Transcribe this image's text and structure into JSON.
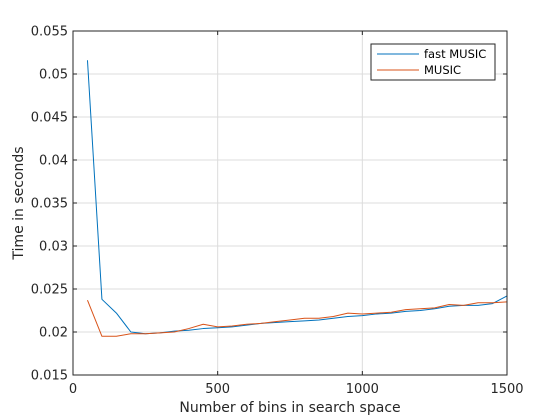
{
  "chart_data": {
    "type": "line",
    "title": "",
    "xlabel": "Number of bins in search space",
    "ylabel": "Time in seconds",
    "xlim": [
      0,
      1500
    ],
    "ylim": [
      0.015,
      0.055
    ],
    "xticks": [
      0,
      500,
      1000,
      1500
    ],
    "xtick_labels": [
      "0",
      "500",
      "1000",
      "1500"
    ],
    "yticks": [
      0.015,
      0.02,
      0.025,
      0.03,
      0.035,
      0.04,
      0.045,
      0.05,
      0.055
    ],
    "ytick_labels": [
      "0.015",
      "0.02",
      "0.025",
      "0.03",
      "0.035",
      "0.04",
      "0.045",
      "0.05",
      "0.055"
    ],
    "grid": true,
    "legend_position": "top-right",
    "x": [
      50,
      100,
      150,
      200,
      250,
      300,
      350,
      400,
      450,
      500,
      550,
      600,
      650,
      700,
      750,
      800,
      850,
      900,
      950,
      1000,
      1050,
      1100,
      1150,
      1200,
      1250,
      1300,
      1350,
      1400,
      1450,
      1500
    ],
    "series": [
      {
        "name": "fast MUSIC",
        "color": "#0072BD",
        "values": [
          0.0516,
          0.0238,
          0.0222,
          0.02,
          0.0198,
          0.0199,
          0.0201,
          0.0202,
          0.0204,
          0.0205,
          0.0206,
          0.0208,
          0.021,
          0.0211,
          0.0212,
          0.0213,
          0.0214,
          0.0216,
          0.0218,
          0.0219,
          0.0221,
          0.0222,
          0.0224,
          0.0225,
          0.0227,
          0.023,
          0.0231,
          0.0231,
          0.0233,
          0.0242
        ]
      },
      {
        "name": "MUSIC",
        "color": "#D95319",
        "values": [
          0.0237,
          0.0195,
          0.0195,
          0.0198,
          0.0198,
          0.0199,
          0.02,
          0.0204,
          0.0209,
          0.0206,
          0.0207,
          0.0209,
          0.021,
          0.0212,
          0.0214,
          0.0216,
          0.0216,
          0.0218,
          0.0222,
          0.0221,
          0.0222,
          0.0223,
          0.0226,
          0.0227,
          0.0228,
          0.0232,
          0.0231,
          0.0234,
          0.0234,
          0.0235
        ]
      }
    ]
  }
}
